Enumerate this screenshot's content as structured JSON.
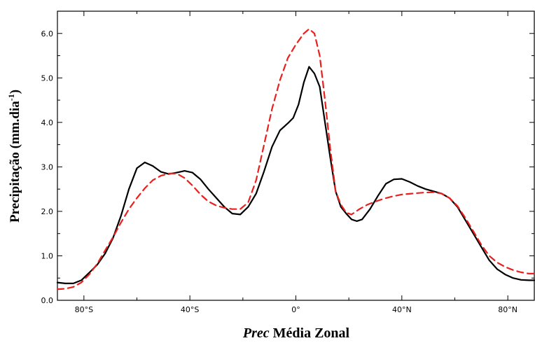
{
  "chart_data": {
    "type": "line",
    "xlabel_italic": "Prec",
    "xlabel_rest": "Média Zonal",
    "ylabel_main": "Precipitação (mm.dia",
    "ylabel_sup": "-1",
    "ylabel_close": ")",
    "xlim": [
      -90,
      90
    ],
    "ylim": [
      0,
      6.5
    ],
    "grid": false,
    "x_ticks": [
      {
        "value": -80,
        "label": "80°S"
      },
      {
        "value": -40,
        "label": "40°S"
      },
      {
        "value": 0,
        "label": "0°"
      },
      {
        "value": 40,
        "label": "40°N"
      },
      {
        "value": 80,
        "label": "80°N"
      }
    ],
    "y_ticks": [
      {
        "value": 0,
        "label": "0.0"
      },
      {
        "value": 1,
        "label": "1.0"
      },
      {
        "value": 2,
        "label": "2.0"
      },
      {
        "value": 3,
        "label": "3.0"
      },
      {
        "value": 4,
        "label": "4.0"
      },
      {
        "value": 5,
        "label": "5.0"
      },
      {
        "value": 6,
        "label": "6.0"
      }
    ],
    "series": [
      {
        "color": "#000000",
        "style": "solid",
        "points": [
          [
            -90,
            0.4
          ],
          [
            -87,
            0.38
          ],
          [
            -84,
            0.38
          ],
          [
            -81,
            0.45
          ],
          [
            -78,
            0.62
          ],
          [
            -75,
            0.8
          ],
          [
            -72,
            1.05
          ],
          [
            -69,
            1.4
          ],
          [
            -66,
            1.9
          ],
          [
            -63,
            2.5
          ],
          [
            -60,
            2.97
          ],
          [
            -57,
            3.1
          ],
          [
            -54,
            3.02
          ],
          [
            -51,
            2.89
          ],
          [
            -48,
            2.84
          ],
          [
            -45,
            2.87
          ],
          [
            -42,
            2.91
          ],
          [
            -39,
            2.87
          ],
          [
            -36,
            2.72
          ],
          [
            -33,
            2.5
          ],
          [
            -30,
            2.3
          ],
          [
            -27,
            2.1
          ],
          [
            -24,
            1.95
          ],
          [
            -21,
            1.93
          ],
          [
            -18,
            2.1
          ],
          [
            -15,
            2.4
          ],
          [
            -12,
            2.9
          ],
          [
            -9,
            3.45
          ],
          [
            -6,
            3.82
          ],
          [
            -3,
            3.98
          ],
          [
            -1,
            4.1
          ],
          [
            1,
            4.4
          ],
          [
            3,
            4.9
          ],
          [
            5,
            5.25
          ],
          [
            7,
            5.1
          ],
          [
            9,
            4.8
          ],
          [
            11,
            4.0
          ],
          [
            13,
            3.2
          ],
          [
            15,
            2.45
          ],
          [
            17,
            2.1
          ],
          [
            19,
            1.95
          ],
          [
            21,
            1.82
          ],
          [
            23,
            1.78
          ],
          [
            25,
            1.82
          ],
          [
            28,
            2.05
          ],
          [
            31,
            2.35
          ],
          [
            34,
            2.62
          ],
          [
            37,
            2.72
          ],
          [
            40,
            2.73
          ],
          [
            43,
            2.66
          ],
          [
            46,
            2.57
          ],
          [
            49,
            2.5
          ],
          [
            52,
            2.45
          ],
          [
            55,
            2.4
          ],
          [
            58,
            2.3
          ],
          [
            61,
            2.1
          ],
          [
            64,
            1.8
          ],
          [
            67,
            1.5
          ],
          [
            70,
            1.2
          ],
          [
            73,
            0.9
          ],
          [
            76,
            0.7
          ],
          [
            79,
            0.58
          ],
          [
            82,
            0.5
          ],
          [
            85,
            0.46
          ],
          [
            88,
            0.45
          ],
          [
            90,
            0.45
          ]
        ]
      },
      {
        "color": "#e8211e",
        "style": "dashed",
        "points": [
          [
            -90,
            0.25
          ],
          [
            -87,
            0.26
          ],
          [
            -84,
            0.3
          ],
          [
            -81,
            0.4
          ],
          [
            -78,
            0.58
          ],
          [
            -75,
            0.82
          ],
          [
            -72,
            1.12
          ],
          [
            -69,
            1.42
          ],
          [
            -66,
            1.75
          ],
          [
            -63,
            2.05
          ],
          [
            -60,
            2.3
          ],
          [
            -57,
            2.52
          ],
          [
            -54,
            2.7
          ],
          [
            -51,
            2.8
          ],
          [
            -48,
            2.85
          ],
          [
            -45,
            2.85
          ],
          [
            -42,
            2.75
          ],
          [
            -39,
            2.58
          ],
          [
            -36,
            2.38
          ],
          [
            -33,
            2.22
          ],
          [
            -30,
            2.13
          ],
          [
            -27,
            2.08
          ],
          [
            -24,
            2.05
          ],
          [
            -21,
            2.05
          ],
          [
            -18,
            2.2
          ],
          [
            -15,
            2.7
          ],
          [
            -12,
            3.5
          ],
          [
            -9,
            4.3
          ],
          [
            -6,
            4.95
          ],
          [
            -3,
            5.45
          ],
          [
            0,
            5.75
          ],
          [
            3,
            6.0
          ],
          [
            5,
            6.1
          ],
          [
            7,
            6.0
          ],
          [
            9,
            5.5
          ],
          [
            11,
            4.5
          ],
          [
            13,
            3.4
          ],
          [
            15,
            2.45
          ],
          [
            17,
            2.15
          ],
          [
            19,
            1.97
          ],
          [
            21,
            1.93
          ],
          [
            24,
            2.05
          ],
          [
            27,
            2.15
          ],
          [
            30,
            2.22
          ],
          [
            33,
            2.28
          ],
          [
            36,
            2.33
          ],
          [
            40,
            2.38
          ],
          [
            44,
            2.4
          ],
          [
            48,
            2.42
          ],
          [
            52,
            2.43
          ],
          [
            55,
            2.4
          ],
          [
            58,
            2.3
          ],
          [
            61,
            2.12
          ],
          [
            64,
            1.85
          ],
          [
            67,
            1.55
          ],
          [
            70,
            1.25
          ],
          [
            73,
            1.0
          ],
          [
            76,
            0.85
          ],
          [
            79,
            0.75
          ],
          [
            82,
            0.68
          ],
          [
            85,
            0.63
          ],
          [
            88,
            0.6
          ],
          [
            90,
            0.6
          ]
        ]
      }
    ]
  }
}
